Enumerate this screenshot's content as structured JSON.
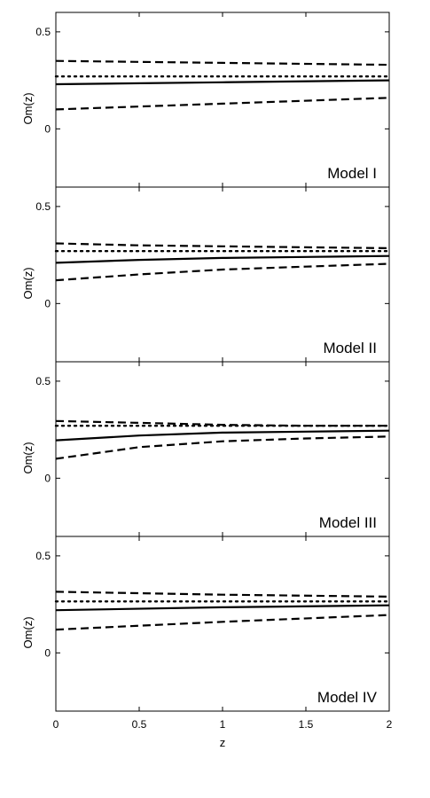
{
  "chart_data": {
    "type": "line",
    "xlabel": "z",
    "x_ticks": [
      "0",
      "0.5",
      "1",
      "1.5",
      "2"
    ],
    "xlim": [
      0,
      2
    ],
    "panels": [
      {
        "label": "Model I",
        "ylabel": "Om(z)",
        "y_ticks": [
          "0.5",
          "0"
        ],
        "ylim": [
          -0.3,
          0.6
        ],
        "series": [
          {
            "style": "solid",
            "x": [
              0,
              1,
              2
            ],
            "y": [
              0.23,
              0.24,
              0.25
            ]
          },
          {
            "style": "dotted",
            "x": [
              0,
              1,
              2
            ],
            "y": [
              0.27,
              0.27,
              0.27
            ]
          },
          {
            "style": "dashed",
            "x": [
              0,
              1,
              2
            ],
            "y": [
              0.35,
              0.34,
              0.33
            ]
          },
          {
            "style": "dashed",
            "x": [
              0,
              1,
              2
            ],
            "y": [
              0.1,
              0.13,
              0.16
            ]
          }
        ]
      },
      {
        "label": "Model II",
        "ylabel": "Om(z)",
        "y_ticks": [
          "0.5",
          "0"
        ],
        "ylim": [
          -0.3,
          0.6
        ],
        "series": [
          {
            "style": "solid",
            "x": [
              0,
              0.5,
              1,
              1.5,
              2
            ],
            "y": [
              0.21,
              0.225,
              0.235,
              0.24,
              0.245
            ]
          },
          {
            "style": "dotted",
            "x": [
              0,
              1,
              2
            ],
            "y": [
              0.27,
              0.27,
              0.27
            ]
          },
          {
            "style": "dashed",
            "x": [
              0,
              0.5,
              1,
              1.5,
              2
            ],
            "y": [
              0.31,
              0.3,
              0.295,
              0.29,
              0.285
            ]
          },
          {
            "style": "dashed",
            "x": [
              0,
              0.5,
              1,
              1.5,
              2
            ],
            "y": [
              0.12,
              0.15,
              0.175,
              0.19,
              0.205
            ]
          }
        ]
      },
      {
        "label": "Model III",
        "ylabel": "Om(z)",
        "y_ticks": [
          "0.5",
          "0"
        ],
        "ylim": [
          -0.3,
          0.6
        ],
        "series": [
          {
            "style": "solid",
            "x": [
              0,
              0.5,
              1,
              1.5,
              2
            ],
            "y": [
              0.195,
              0.22,
              0.235,
              0.24,
              0.245
            ]
          },
          {
            "style": "dotted",
            "x": [
              0,
              1,
              2
            ],
            "y": [
              0.27,
              0.27,
              0.27
            ]
          },
          {
            "style": "dashed",
            "x": [
              0,
              0.5,
              1,
              1.5,
              2
            ],
            "y": [
              0.295,
              0.285,
              0.275,
              0.27,
              0.27
            ]
          },
          {
            "style": "dashed",
            "x": [
              0,
              0.5,
              1,
              1.5,
              2
            ],
            "y": [
              0.1,
              0.16,
              0.19,
              0.205,
              0.215
            ]
          }
        ]
      },
      {
        "label": "Model IV",
        "ylabel": "Om(z)",
        "y_ticks": [
          "0.5",
          "0"
        ],
        "ylim": [
          -0.3,
          0.6
        ],
        "series": [
          {
            "style": "solid",
            "x": [
              0,
              1,
              2
            ],
            "y": [
              0.22,
              0.235,
              0.245
            ]
          },
          {
            "style": "dotted",
            "x": [
              0,
              1,
              2
            ],
            "y": [
              0.265,
              0.265,
              0.265
            ]
          },
          {
            "style": "dashed",
            "x": [
              0,
              1,
              2
            ],
            "y": [
              0.315,
              0.3,
              0.29
            ]
          },
          {
            "style": "dashed",
            "x": [
              0,
              1,
              2
            ],
            "y": [
              0.12,
              0.16,
              0.195
            ]
          }
        ]
      }
    ]
  }
}
